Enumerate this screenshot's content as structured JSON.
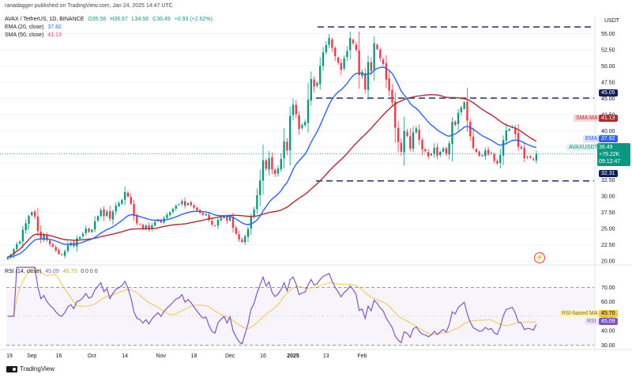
{
  "header": {
    "publisher": "ranadagger published on TradingView.com, Jan 24, 2025 14:47 UTC",
    "symbol": "AVAX / TetherUS, 1D, BINANCE",
    "open": "O35.56",
    "high": "H36.67",
    "low": "L34.56",
    "close": "C36.49",
    "change": "+0.93 (+2.62%)",
    "ema_label": "EMA (20, close)",
    "ema_value": "37.82",
    "sma_label": "SMA (50, close)",
    "sma_value": "41.13",
    "rsi_label": "RSI (14, close)",
    "rsi_value": "45.09",
    "rsi_ma_value": "45.70",
    "rsi_extra": "0 0 0 0"
  },
  "price_tags": {
    "sma_tag_label": "SMA:MA",
    "sma_tag_value": "41.13",
    "ema_tag_label": "EMA",
    "ema_tag_value": "37.82",
    "symbol_tag": "AVAXUSDT",
    "last_price": "36.49",
    "change_tag": "+79.22K",
    "countdown": "09:12:47",
    "resistance": "45.05",
    "support": "32.31",
    "rsi_ma_label": "RSI-based MA",
    "rsi_ma_value": "45.70",
    "rsi_label": "RSI",
    "rsi_value": "45.09"
  },
  "footer": {
    "brand": "TradingView"
  },
  "colors": {
    "up": "#089981",
    "down": "#f23645",
    "ema": "#2962ff",
    "sma": "#b22833",
    "rsi": "#7e57c2",
    "rsi_ma": "#f5c443",
    "level": "#0d1f5c"
  },
  "chart_data": [
    {
      "type": "candlestick",
      "currency": "USDT",
      "y_ticks": [
        "55.00",
        "52.50",
        "50.00",
        "47.50",
        "45.00",
        "42.50",
        "40.00",
        "37.50",
        "35.00",
        "32.50",
        "30.00",
        "27.50",
        "25.00",
        "22.50",
        "20.00"
      ],
      "ylim": [
        20,
        56.5
      ],
      "x_ticks": [
        "19",
        "Sep",
        "16",
        "Oct",
        "14",
        "Nov",
        "18",
        "Dec",
        "16",
        "2025",
        "13",
        "Feb"
      ],
      "horizontal_levels": [
        56.0,
        45.05,
        32.31
      ],
      "closes": [
        20.6,
        21.0,
        21.8,
        22.6,
        23.0,
        24.8,
        25.8,
        26.9,
        27.5,
        26.8,
        24.6,
        23.3,
        24.0,
        23.2,
        22.6,
        22.2,
        21.6,
        21.1,
        20.9,
        21.5,
        22.4,
        22.8,
        22.3,
        23.5,
        23.7,
        24.2,
        25.0,
        24.5,
        24.8,
        26.1,
        26.9,
        27.8,
        26.9,
        27.6,
        26.5,
        27.6,
        28.5,
        28.9,
        29.4,
        30.6,
        29.9,
        28.8,
        26.9,
        25.8,
        25.6,
        25.0,
        25.5,
        24.8,
        25.5,
        26.0,
        26.4,
        25.9,
        26.6,
        27.1,
        27.5,
        28.0,
        28.5,
        28.7,
        29.2,
        28.5,
        28.9,
        28.6,
        28.2,
        27.8,
        27.4,
        27.1,
        27.2,
        26.3,
        25.6,
        25.4,
        26.3,
        26.6,
        26.9,
        26.2,
        26.8,
        25.1,
        24.2,
        23.3,
        22.9,
        23.8,
        24.9,
        26.9,
        27.9,
        30.1,
        32.4,
        35.5,
        34.2,
        35.8,
        34.1,
        33.4,
        34.2,
        35.7,
        38.4,
        37.0,
        42.3,
        44.0,
        42.6,
        40.3,
        40.9,
        41.4,
        44.8,
        48.0,
        46.8,
        47.4,
        50.0,
        52.1,
        53.2,
        54.3,
        52.8,
        51.5,
        50.5,
        49.4,
        51.2,
        52.3,
        54.3,
        53.5,
        52.5,
        48.6,
        49.1,
        46.4,
        50.6,
        49.2,
        53.5,
        52.6,
        51.2,
        50.3,
        47.9,
        46.2,
        44.4,
        40.5,
        38.3,
        36.8,
        40.0,
        39.2,
        37.3,
        39.8,
        40.4,
        38.6,
        37.2,
        36.9,
        36.1,
        36.5,
        37.4,
        36.2,
        36.8,
        37.3,
        36.5,
        38.1,
        41.4,
        40.9,
        42.8,
        43.6,
        44.4,
        41.6,
        39.2,
        37.4,
        36.8,
        36.2,
        36.3,
        37.0,
        36.4,
        36.6,
        35.4,
        35.0,
        36.3,
        38.6,
        40.1,
        40.3,
        40.6,
        39.5,
        37.6,
        37.3,
        35.8,
        36.0,
        35.9,
        35.6,
        36.49
      ],
      "ema_20_last": 37.82,
      "sma_50_last": 41.13
    },
    {
      "type": "line",
      "name": "RSI (14, close)",
      "y_ticks": [
        "70.00",
        "60.00",
        "50.00",
        "40.00",
        "30.00"
      ],
      "ylim": [
        28,
        84
      ],
      "levels": [
        70,
        30
      ],
      "rsi_last": 45.09,
      "rsi_ma_last": 45.7
    }
  ]
}
